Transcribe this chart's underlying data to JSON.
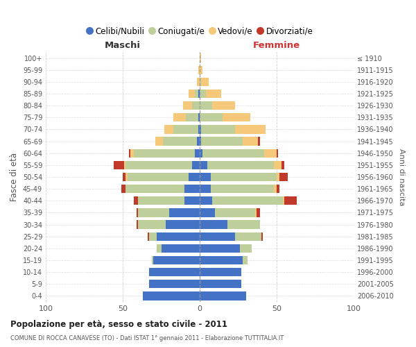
{
  "age_groups": [
    "0-4",
    "5-9",
    "10-14",
    "15-19",
    "20-24",
    "25-29",
    "30-34",
    "35-39",
    "40-44",
    "45-49",
    "50-54",
    "55-59",
    "60-64",
    "65-69",
    "70-74",
    "75-79",
    "80-84",
    "85-89",
    "90-94",
    "95-99",
    "100+"
  ],
  "birth_years": [
    "2006-2010",
    "2001-2005",
    "1996-2000",
    "1991-1995",
    "1986-1990",
    "1981-1985",
    "1976-1980",
    "1971-1975",
    "1966-1970",
    "1961-1965",
    "1956-1960",
    "1951-1955",
    "1946-1950",
    "1941-1945",
    "1936-1940",
    "1931-1935",
    "1926-1930",
    "1921-1925",
    "1916-1920",
    "1911-1915",
    "≤ 1910"
  ],
  "colors": {
    "celibi": "#4472C4",
    "coniugati": "#BFCF9B",
    "vedovi": "#F5C87A",
    "divorziati": "#C0392B"
  },
  "males": {
    "celibi": [
      37,
      33,
      33,
      30,
      25,
      28,
      22,
      20,
      10,
      10,
      7,
      5,
      3,
      2,
      1,
      1,
      0,
      1,
      0,
      0,
      0
    ],
    "coniugati": [
      0,
      0,
      0,
      1,
      3,
      5,
      18,
      20,
      30,
      38,
      40,
      43,
      40,
      22,
      16,
      8,
      5,
      2,
      0,
      0,
      0
    ],
    "vedovi": [
      0,
      0,
      0,
      0,
      0,
      0,
      0,
      0,
      0,
      0,
      1,
      1,
      2,
      5,
      6,
      8,
      6,
      4,
      2,
      1,
      0
    ],
    "divorziati": [
      0,
      0,
      0,
      0,
      0,
      1,
      1,
      1,
      3,
      3,
      2,
      7,
      1,
      0,
      0,
      0,
      0,
      0,
      0,
      0,
      0
    ]
  },
  "females": {
    "celibi": [
      30,
      27,
      27,
      28,
      26,
      23,
      18,
      10,
      8,
      7,
      7,
      5,
      2,
      1,
      1,
      0,
      0,
      0,
      0,
      0,
      0
    ],
    "coniugati": [
      0,
      0,
      0,
      3,
      8,
      17,
      21,
      26,
      46,
      41,
      43,
      43,
      40,
      27,
      22,
      15,
      8,
      4,
      1,
      0,
      0
    ],
    "vedovi": [
      0,
      0,
      0,
      0,
      0,
      0,
      0,
      1,
      1,
      2,
      2,
      5,
      8,
      10,
      20,
      18,
      15,
      10,
      5,
      2,
      1
    ],
    "divorziati": [
      0,
      0,
      0,
      0,
      0,
      1,
      0,
      2,
      8,
      2,
      5,
      2,
      1,
      1,
      0,
      0,
      0,
      0,
      0,
      0,
      0
    ]
  },
  "title_main": "Popolazione per età, sesso e stato civile - 2011",
  "title_sub": "COMUNE DI ROCCA CANAVESE (TO) - Dati ISTAT 1° gennaio 2011 - Elaborazione TUTTITALIA.IT",
  "xlabel_left": "Maschi",
  "xlabel_right": "Femmine",
  "ylabel_left": "Fasce di età",
  "ylabel_right": "Anni di nascita",
  "xlim": 100,
  "legend_labels": [
    "Celibi/Nubili",
    "Coniugati/e",
    "Vedovi/e",
    "Divorziati/e"
  ],
  "background_color": "#ffffff",
  "grid_color": "#cccccc"
}
